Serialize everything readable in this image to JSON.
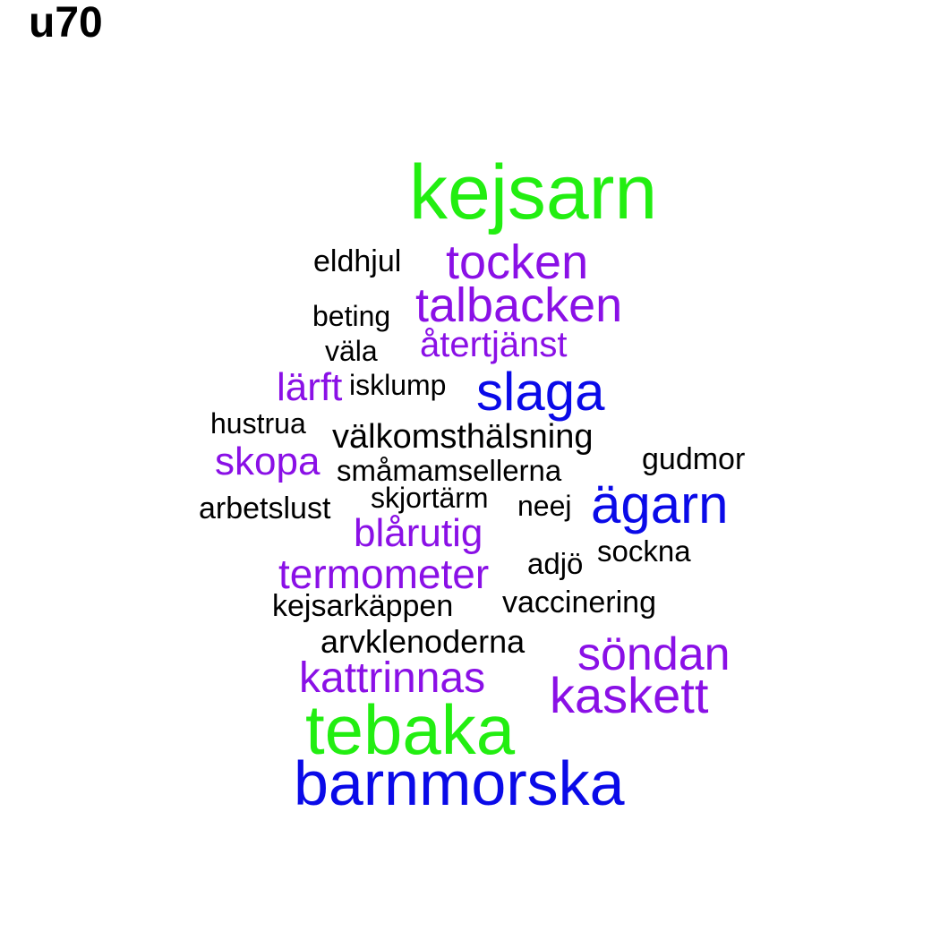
{
  "title": "u70",
  "colors": {
    "green": "#22ee11",
    "purple": "#8a10e6",
    "blue": "#0a0ae8",
    "black": "#000000"
  },
  "words": {
    "kejsarn": "kejsarn",
    "eldhjul": "eldhjul",
    "tocken": "tocken",
    "beting": "beting",
    "talbacken": "talbacken",
    "vala": "väla",
    "atertjanst": "återtjänst",
    "larft": "lärft",
    "isklump": "isklump",
    "slaga": "slaga",
    "hustrua": "hustrua",
    "valkomsthalsning": "välkomsthälsning",
    "skopa": "skopa",
    "gudmor": "gudmor",
    "smamamsellerna": "småmamsellerna",
    "skjortarm": "skjortärm",
    "arbetslust": "arbetslust",
    "neej": "neej",
    "agarn": "ägarn",
    "blarutig": "blårutig",
    "sockna": "sockna",
    "adjo": "adjö",
    "termometer": "termometer",
    "vaccinering": "vaccinering",
    "kejsarkappen": "kejsarkäppen",
    "arvklenoderna": "arvklenoderna",
    "sondan": "söndan",
    "kattrinnas": "kattrinnas",
    "kaskett": "kaskett",
    "tebaka": "tebaka",
    "barnmorska": "barnmorska"
  }
}
